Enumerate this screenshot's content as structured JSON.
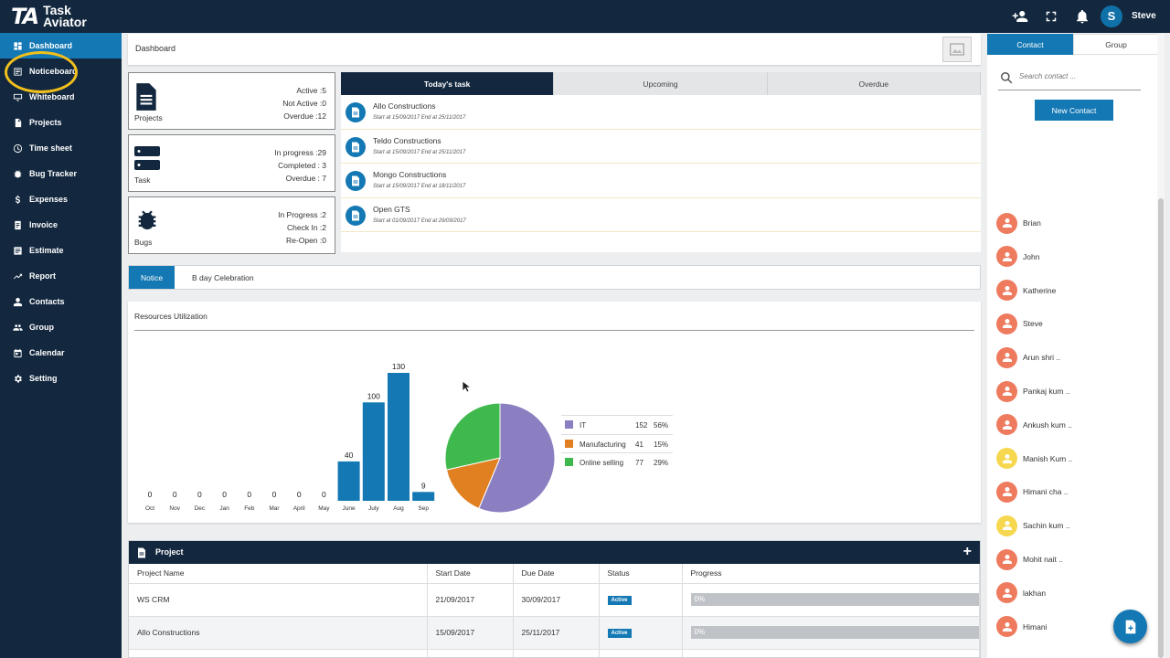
{
  "app": {
    "logo_mark": "TA",
    "name_line1": "Task",
    "name_line2": "Aviator",
    "user_initial": "S",
    "user_name": "Steve"
  },
  "topbar_icons": [
    "add-user-icon",
    "fullscreen-icon",
    "bell-icon"
  ],
  "sidebar": {
    "items": [
      {
        "label": "Dashboard",
        "icon": "dashboard-icon",
        "active": true
      },
      {
        "label": "Noticeboard",
        "icon": "noticeboard-icon"
      },
      {
        "label": "Whiteboard",
        "icon": "whiteboard-icon"
      },
      {
        "label": "Projects",
        "icon": "document-icon"
      },
      {
        "label": "Time sheet",
        "icon": "clock-icon"
      },
      {
        "label": "Bug Tracker",
        "icon": "bug-icon"
      },
      {
        "label": "Expenses",
        "icon": "dollar-icon"
      },
      {
        "label": "Invoice",
        "icon": "invoice-icon"
      },
      {
        "label": "Estimate",
        "icon": "estimate-icon"
      },
      {
        "label": "Report",
        "icon": "trend-icon"
      },
      {
        "label": "Contacts",
        "icon": "person-icon"
      },
      {
        "label": "Group",
        "icon": "group-icon"
      },
      {
        "label": "Calendar",
        "icon": "calendar-icon"
      },
      {
        "label": "Setting",
        "icon": "gear-icon"
      }
    ]
  },
  "breadcrumb": "Dashboard",
  "stats": {
    "projects": {
      "label": "Projects",
      "lines": [
        "Active :5",
        "Not Active :0",
        "Overdue :12"
      ]
    },
    "task": {
      "label": "Task",
      "lines": [
        "In progress :29",
        "Completed : 3",
        "Overdue : 7"
      ]
    },
    "bugs": {
      "label": "Bugs",
      "lines": [
        "In Progress :2",
        "Check In :2",
        "Re-Open :0"
      ]
    }
  },
  "tasks": {
    "tabs": [
      "Today's task",
      "Upcoming",
      "Overdue"
    ],
    "items": [
      {
        "title": "Allo Constructions",
        "dates": "Start at 15/09/2017 End at 25/11/2017"
      },
      {
        "title": "Teldo Constructions",
        "dates": "Start at 15/09/2017 End at 25/11/2017"
      },
      {
        "title": "Mongo Constructions",
        "dates": "Start at 15/09/2017 End at 18/11/2017"
      },
      {
        "title": "Open GTS",
        "dates": "Start at 01/09/2017 End at 29/09/2017"
      }
    ]
  },
  "notice": {
    "tabs": [
      "Notice",
      "B day Celebration"
    ]
  },
  "resources": {
    "title": "Resources Utilization"
  },
  "chart_data": [
    {
      "type": "bar",
      "categories": [
        "Oct",
        "Nov",
        "Dec",
        "Jan",
        "Feb",
        "Mar",
        "April",
        "May",
        "June",
        "July",
        "Aug",
        "Sep"
      ],
      "values": [
        0,
        0,
        0,
        0,
        0,
        0,
        0,
        0,
        40,
        100,
        130,
        9
      ],
      "color": "#1378b4"
    },
    {
      "type": "pie",
      "slices": [
        {
          "name": "IT",
          "value": 152,
          "percent": "56%",
          "color": "#8b7fc2"
        },
        {
          "name": "Manufacturing",
          "value": 41,
          "percent": "15%",
          "color": "#e08021"
        },
        {
          "name": "Online selling",
          "value": 77,
          "percent": "29%",
          "color": "#3fb94d"
        }
      ]
    }
  ],
  "project": {
    "title": "Project",
    "add": "+",
    "columns": [
      "Project Name",
      "Start Date",
      "Due Date",
      "Status",
      "Progress"
    ],
    "rows": [
      {
        "name": "WS CRM",
        "start": "21/09/2017",
        "due": "30/09/2017",
        "status": "Active",
        "progress": "0%"
      },
      {
        "name": "Allo Constructions",
        "start": "15/09/2017",
        "due": "25/11/2017",
        "status": "Active",
        "progress": "0%"
      }
    ]
  },
  "contacts_panel": {
    "tabs": [
      "Contact",
      "Group"
    ],
    "search_placeholder": "Search contact ...",
    "new_button": "New Contact",
    "people": [
      {
        "name": "Brian",
        "color": "#ef7b5f"
      },
      {
        "name": "John",
        "color": "#ef7b5f"
      },
      {
        "name": "Katherine",
        "color": "#ef7b5f"
      },
      {
        "name": "Steve",
        "color": "#ef7b5f"
      },
      {
        "name": "Arun shri  ..",
        "color": "#ef7b5f"
      },
      {
        "name": "Pankaj kum  ..",
        "color": "#ef7b5f"
      },
      {
        "name": "Ankush kum  ..",
        "color": "#ef7b5f"
      },
      {
        "name": "Manish Kum  ..",
        "color": "#f5d84f"
      },
      {
        "name": "Himani cha  ..",
        "color": "#ef7b5f"
      },
      {
        "name": "Sachin kum  ..",
        "color": "#f5d84f"
      },
      {
        "name": "Mohit nait  ..",
        "color": "#ef7b5f"
      },
      {
        "name": "lakhan",
        "color": "#ef7b5f"
      },
      {
        "name": "Himani",
        "color": "#ef7b5f"
      }
    ]
  }
}
